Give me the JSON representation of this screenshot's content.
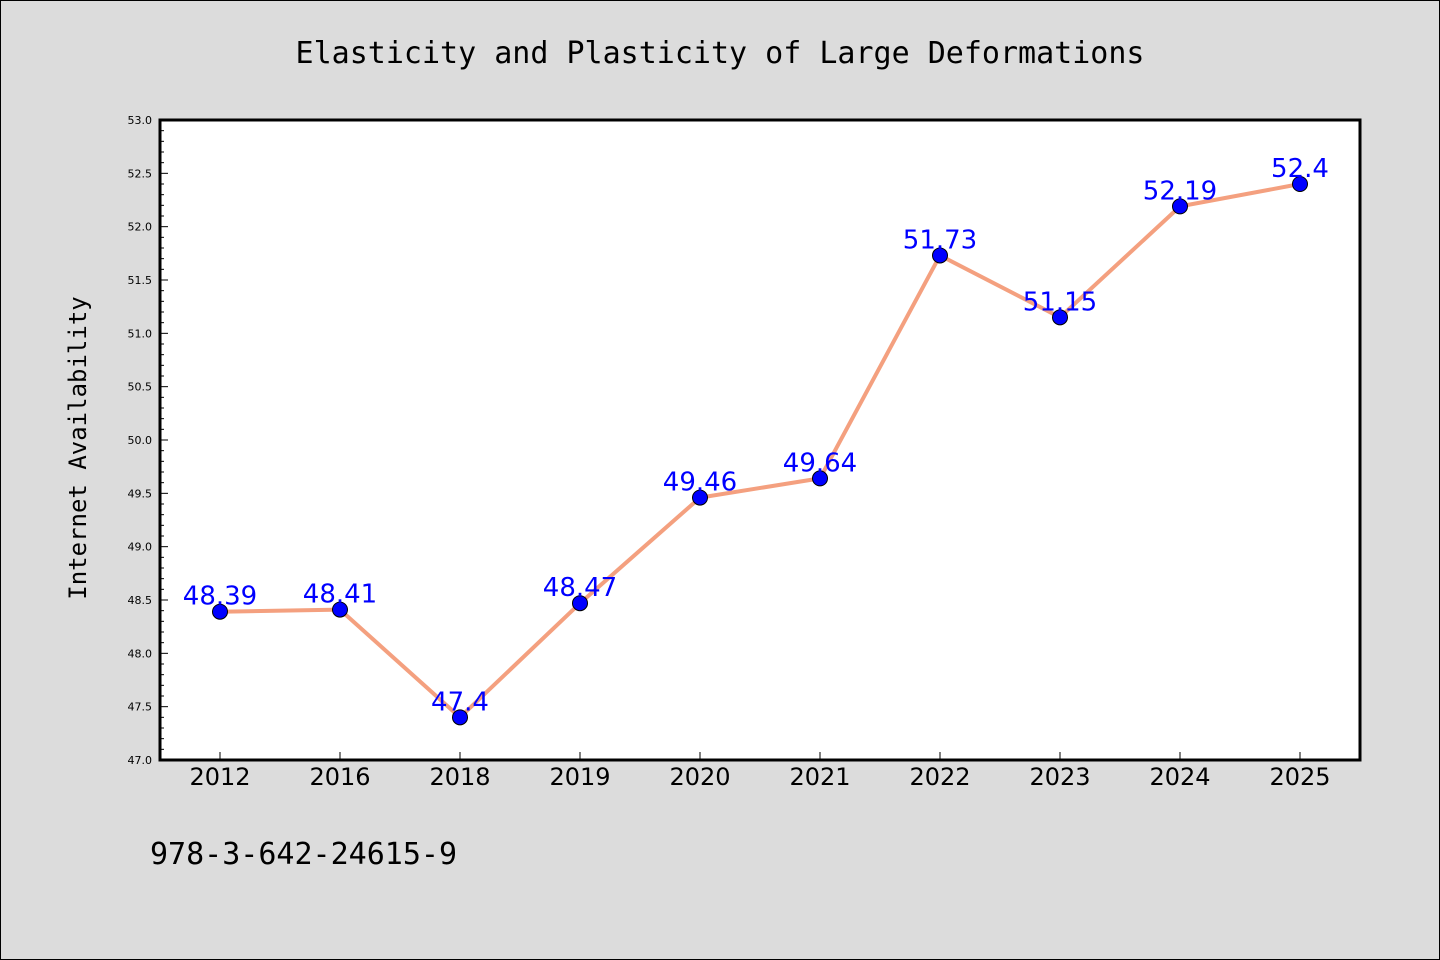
{
  "chart_data": {
    "type": "line",
    "title": "Elasticity and Plasticity of Large Deformations",
    "xlabel": "",
    "ylabel": "Internet Availability",
    "categories": [
      "2012",
      "2016",
      "2018",
      "2019",
      "2020",
      "2021",
      "2022",
      "2023",
      "2024",
      "2025"
    ],
    "values": [
      48.39,
      48.41,
      47.4,
      48.47,
      49.46,
      49.64,
      51.73,
      51.15,
      52.19,
      52.4
    ],
    "data_labels": [
      "48.39",
      "48.41",
      "47.4",
      "48.47",
      "49.46",
      "49.64",
      "51.73",
      "51.15",
      "52.19",
      "52.4"
    ],
    "ylim": [
      47.0,
      53.0
    ],
    "yticks": [
      "47.0",
      "47.5",
      "48.0",
      "48.5",
      "49.0",
      "49.5",
      "50.0",
      "50.5",
      "51.0",
      "51.5",
      "52.0",
      "52.5",
      "53.0"
    ],
    "grid": false,
    "legend": "none",
    "line_color": "#f4a07f",
    "marker_color": "#0000ff",
    "label_color": "#0000ff",
    "plot_background": "#ffffff",
    "figure_background": "#dcdcdc"
  },
  "footer": {
    "isbn": "978-3-642-24615-9"
  }
}
